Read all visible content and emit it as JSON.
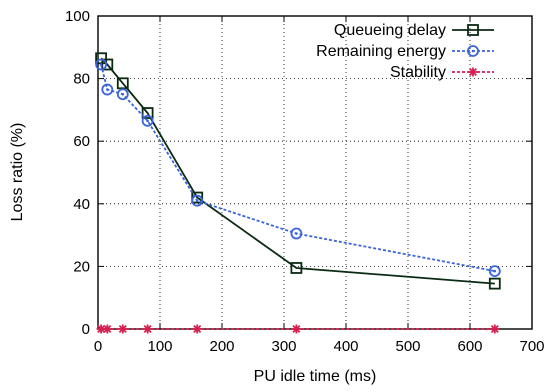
{
  "chart_data": {
    "type": "line",
    "xlabel": "PU idle time (ms)",
    "ylabel": "Loss ratio (%)",
    "xlim": [
      0,
      700
    ],
    "ylim": [
      0,
      100
    ],
    "xticks": [
      0,
      100,
      200,
      300,
      400,
      500,
      600,
      700
    ],
    "yticks": [
      0,
      20,
      40,
      60,
      80,
      100
    ],
    "grid": true,
    "legend_position": "top-right",
    "x": [
      5,
      15,
      40,
      80,
      160,
      320,
      640
    ],
    "series": [
      {
        "name": "Queueing delay",
        "values": [
          86.5,
          84.5,
          78.5,
          69,
          42,
          19.5,
          14.5
        ],
        "color": "#0b2a12",
        "line_style": "solid",
        "marker": "square"
      },
      {
        "name": "Remaining energy",
        "values": [
          84.5,
          76.5,
          75,
          66.5,
          41,
          30.5,
          18.5
        ],
        "color": "#3a64d8",
        "line_style": "dotted",
        "marker": "circle"
      },
      {
        "name": "Stability",
        "values": [
          0,
          0,
          0,
          0,
          0,
          0,
          0
        ],
        "color": "#d42050",
        "line_style": "dotted",
        "marker": "star"
      }
    ]
  }
}
